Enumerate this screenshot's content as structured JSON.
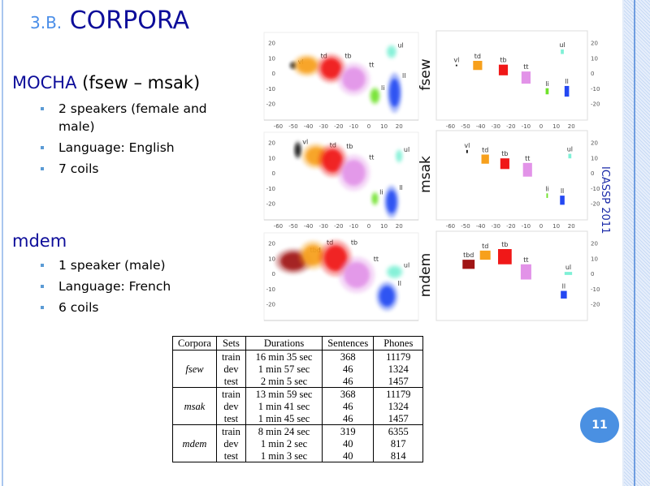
{
  "slide": {
    "section_number": "3.B.",
    "title": "CORPORA",
    "conference": "ICASSP 2011",
    "page_number": "11",
    "accent_color": "#4a90e2",
    "title_color": "#0d0d9a"
  },
  "mocha": {
    "heading": "MOCHA",
    "heading_rest": " (fsew – msak)",
    "bullets": [
      "2 speakers (female and male)",
      "Language: English",
      "7 coils"
    ]
  },
  "mdem": {
    "heading": "mdem",
    "bullets": [
      "1 speaker (male)",
      "Language: French",
      "6 coils"
    ]
  },
  "table": {
    "headers": [
      "Corpora",
      "Sets",
      "Durations",
      "Sentences",
      "Phones"
    ],
    "groups": [
      {
        "corpus": "fsew",
        "rows": [
          [
            "train",
            "16 min 35 sec",
            "368",
            "11179"
          ],
          [
            "dev",
            "1 min 57 sec",
            "46",
            "1324"
          ],
          [
            "test",
            "2 min 5 sec",
            "46",
            "1457"
          ]
        ]
      },
      {
        "corpus": "msak",
        "rows": [
          [
            "train",
            "13 min 59 sec",
            "368",
            "11179"
          ],
          [
            "dev",
            "1 min 41 sec",
            "46",
            "1324"
          ],
          [
            "test",
            "1 min 45 sec",
            "46",
            "1457"
          ]
        ]
      },
      {
        "corpus": "mdem",
        "rows": [
          [
            "train",
            "8 min 24 sec",
            "319",
            "6355"
          ],
          [
            "dev",
            "1 min 2 sec",
            "40",
            "817"
          ],
          [
            "test",
            "1 min 3 sec",
            "40",
            "814"
          ]
        ]
      }
    ]
  },
  "chart_data": [
    {
      "type": "scatter",
      "speaker": "fsew",
      "x_ticks": [
        -60,
        -50,
        -40,
        -30,
        -20,
        -10,
        0,
        10,
        20
      ],
      "y_ticks": [
        20,
        10,
        0,
        -10,
        -20
      ],
      "xlim": [
        -65,
        30
      ],
      "ylim": [
        -30,
        25
      ],
      "colors": {
        "vl": "#111111",
        "td": "#f7a01c",
        "tb": "#f01818",
        "tt": "#e293e8",
        "ul": "#7ff0d6",
        "li": "#6fe22a",
        "ll": "#2448f2"
      },
      "clouds": [
        {
          "label": "vl",
          "x": -50,
          "y": 5,
          "sx": 2,
          "sy": 2
        },
        {
          "label": "td",
          "x": -41,
          "y": 5,
          "sx": 8,
          "sy": 6
        },
        {
          "label": "tb",
          "x": -25,
          "y": 3,
          "sx": 8,
          "sy": 8
        },
        {
          "label": "tt",
          "x": -10,
          "y": -4,
          "sx": 9,
          "sy": 9
        },
        {
          "label": "ul",
          "x": 15,
          "y": 14,
          "sx": 3,
          "sy": 4
        },
        {
          "label": "li",
          "x": 4,
          "y": -15,
          "sx": 3,
          "sy": 5
        },
        {
          "label": "ll",
          "x": 17,
          "y": -13,
          "sx": 4,
          "sy": 11
        }
      ],
      "means": [
        {
          "label": "vl",
          "x": -56,
          "y": 5,
          "w": 1,
          "h": 1
        },
        {
          "label": "td",
          "x": -42,
          "y": 5,
          "w": 6,
          "h": 6
        },
        {
          "label": "tb",
          "x": -25,
          "y": 2,
          "w": 6,
          "h": 7
        },
        {
          "label": "tt",
          "x": -10,
          "y": -3,
          "w": 6,
          "h": 8
        },
        {
          "label": "ul",
          "x": 14,
          "y": 14,
          "w": 2,
          "h": 3
        },
        {
          "label": "li",
          "x": 4,
          "y": -12,
          "w": 2,
          "h": 4
        },
        {
          "label": "ll",
          "x": 17,
          "y": -12,
          "w": 3,
          "h": 7
        }
      ]
    },
    {
      "type": "scatter",
      "speaker": "msak",
      "x_ticks": [
        -60,
        -50,
        -40,
        -30,
        -20,
        -10,
        0,
        10,
        20
      ],
      "y_ticks": [
        20,
        10,
        0,
        -10,
        -20
      ],
      "xlim": [
        -65,
        30
      ],
      "ylim": [
        -30,
        25
      ],
      "colors": {
        "vl": "#111111",
        "td": "#f7a01c",
        "tb": "#f01818",
        "tt": "#e293e8",
        "ul": "#7ff0d6",
        "li": "#6fe22a",
        "ll": "#2448f2"
      },
      "clouds": [
        {
          "label": "vl",
          "x": -47,
          "y": 15,
          "sx": 2,
          "sy": 5
        },
        {
          "label": "td",
          "x": -35,
          "y": 11,
          "sx": 8,
          "sy": 7
        },
        {
          "label": "tb",
          "x": -24,
          "y": 8,
          "sx": 8,
          "sy": 9
        },
        {
          "label": "tt",
          "x": -10,
          "y": 0,
          "sx": 9,
          "sy": 10
        },
        {
          "label": "ul",
          "x": 20,
          "y": 11,
          "sx": 2,
          "sy": 4
        },
        {
          "label": "li",
          "x": 4,
          "y": -17,
          "sx": 2,
          "sy": 4
        },
        {
          "label": "ll",
          "x": 15,
          "y": -19,
          "sx": 4,
          "sy": 9
        }
      ],
      "means": [
        {
          "label": "vl",
          "x": -49,
          "y": 14,
          "w": 1,
          "h": 2
        },
        {
          "label": "td",
          "x": -37,
          "y": 9,
          "w": 5,
          "h": 6
        },
        {
          "label": "tb",
          "x": -24,
          "y": 6,
          "w": 6,
          "h": 7
        },
        {
          "label": "tt",
          "x": -9,
          "y": 2,
          "w": 6,
          "h": 9
        },
        {
          "label": "ul",
          "x": 19,
          "y": 11,
          "w": 2,
          "h": 3
        },
        {
          "label": "li",
          "x": 4,
          "y": -15,
          "w": 1,
          "h": 3
        },
        {
          "label": "ll",
          "x": 14,
          "y": -18,
          "w": 3,
          "h": 6
        }
      ]
    },
    {
      "type": "scatter",
      "speaker": "mdem",
      "x_ticks": [],
      "y_ticks": [
        20,
        10,
        0,
        -10,
        -20
      ],
      "xlim": [
        -65,
        30
      ],
      "ylim": [
        -30,
        25
      ],
      "colors": {
        "tbd": "#a01414",
        "td": "#f7a01c",
        "tb": "#f01818",
        "tt": "#e293e8",
        "ul": "#7ff0d6",
        "ll": "#2448f2"
      },
      "clouds": [
        {
          "label": "tbd",
          "x": -50,
          "y": 8,
          "sx": 10,
          "sy": 7
        },
        {
          "label": "td",
          "x": -37,
          "y": 12,
          "sx": 8,
          "sy": 8
        },
        {
          "label": "tb",
          "x": -22,
          "y": 10,
          "sx": 9,
          "sy": 10
        },
        {
          "label": "tt",
          "x": -8,
          "y": -1,
          "sx": 10,
          "sy": 10
        },
        {
          "label": "ul",
          "x": 17,
          "y": 1,
          "sx": 5,
          "sy": 4
        },
        {
          "label": "ll",
          "x": 12,
          "y": -15,
          "sx": 6,
          "sy": 8
        }
      ],
      "means": [
        {
          "label": "tbd",
          "x": -48,
          "y": 6,
          "w": 8,
          "h": 6
        },
        {
          "label": "td",
          "x": -37,
          "y": 12,
          "w": 7,
          "h": 6
        },
        {
          "label": "tb",
          "x": -24,
          "y": 11,
          "w": 9,
          "h": 10
        },
        {
          "label": "tt",
          "x": -10,
          "y": 1,
          "w": 7,
          "h": 10
        },
        {
          "label": "ul",
          "x": 18,
          "y": 0,
          "w": 5,
          "h": 2
        },
        {
          "label": "ll",
          "x": 15,
          "y": -14,
          "w": 4,
          "h": 5
        }
      ]
    }
  ]
}
